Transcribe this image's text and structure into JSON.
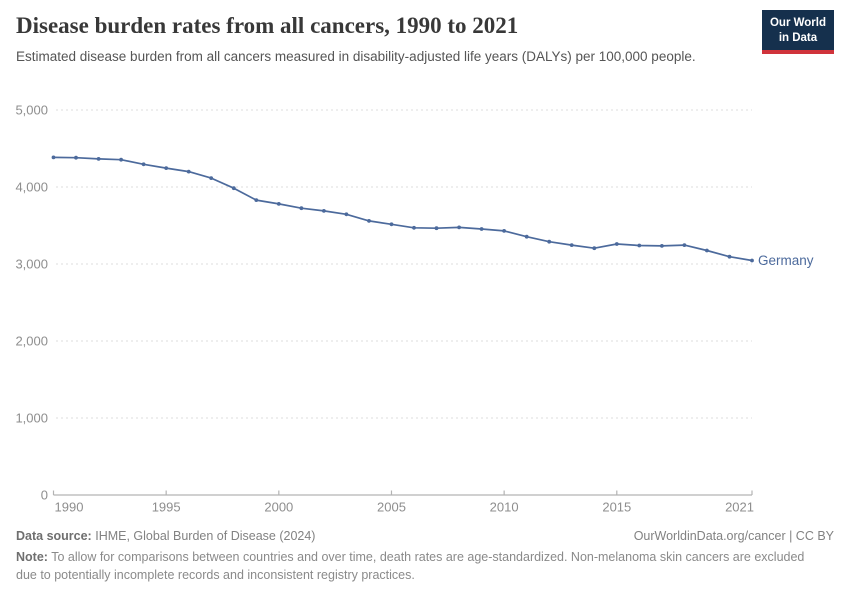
{
  "header": {
    "title": "Disease burden rates from all cancers, 1990 to 2021",
    "subtitle": "Estimated disease burden from all cancers measured in disability-adjusted life years (DALYs) per 100,000 people.",
    "logo": {
      "line1": "Our World",
      "line2": "in Data",
      "bg_color": "#15304d",
      "accent_color": "#d0333b"
    }
  },
  "chart_data": {
    "type": "line",
    "title": "Disease burden rates from all cancers, 1990 to 2021",
    "xlabel": "",
    "ylabel": "DALYs per 100,000 people",
    "x": [
      1990,
      1991,
      1992,
      1993,
      1994,
      1995,
      1996,
      1997,
      1998,
      1999,
      2000,
      2001,
      2002,
      2003,
      2004,
      2005,
      2006,
      2007,
      2008,
      2009,
      2010,
      2011,
      2012,
      2013,
      2014,
      2015,
      2016,
      2017,
      2018,
      2019,
      2020,
      2021
    ],
    "series": [
      {
        "name": "Germany",
        "color": "#4C6A9C",
        "values": [
          4385,
          4380,
          4365,
          4355,
          4295,
          4245,
          4200,
          4115,
          3985,
          3830,
          3780,
          3725,
          3690,
          3645,
          3560,
          3515,
          3470,
          3465,
          3475,
          3455,
          3430,
          3355,
          3290,
          3245,
          3205,
          3260,
          3240,
          3235,
          3245,
          3175,
          3095,
          3045
        ]
      }
    ],
    "xlim": [
      1990,
      2021
    ],
    "ylim": [
      0,
      5000
    ],
    "xticks": [
      1990,
      1995,
      2000,
      2005,
      2010,
      2015,
      2021
    ],
    "yticks": [
      0,
      1000,
      2000,
      3000,
      4000,
      5000
    ],
    "ytick_labels": [
      "0",
      "1,000",
      "2,000",
      "3,000",
      "4,000",
      "5,000"
    ],
    "grid": true,
    "legend_position": "end-of-line",
    "end_label": "Germany",
    "colors": {
      "gridline": "#dcdcdc",
      "axis": "#b3b3b3",
      "tick_label": "#8e8e8e",
      "line": "#4C6A9C"
    }
  },
  "footer": {
    "datasource_label": "Data source:",
    "datasource_text": "IHME, Global Burden of Disease (2024)",
    "rights_text": "OurWorldinData.org/cancer | CC BY",
    "note_label": "Note:",
    "note_text": "To allow for comparisons between countries and over time, death rates are age-standardized. Non-melanoma skin cancers are excluded due to potentially incomplete records and inconsistent registry practices."
  }
}
